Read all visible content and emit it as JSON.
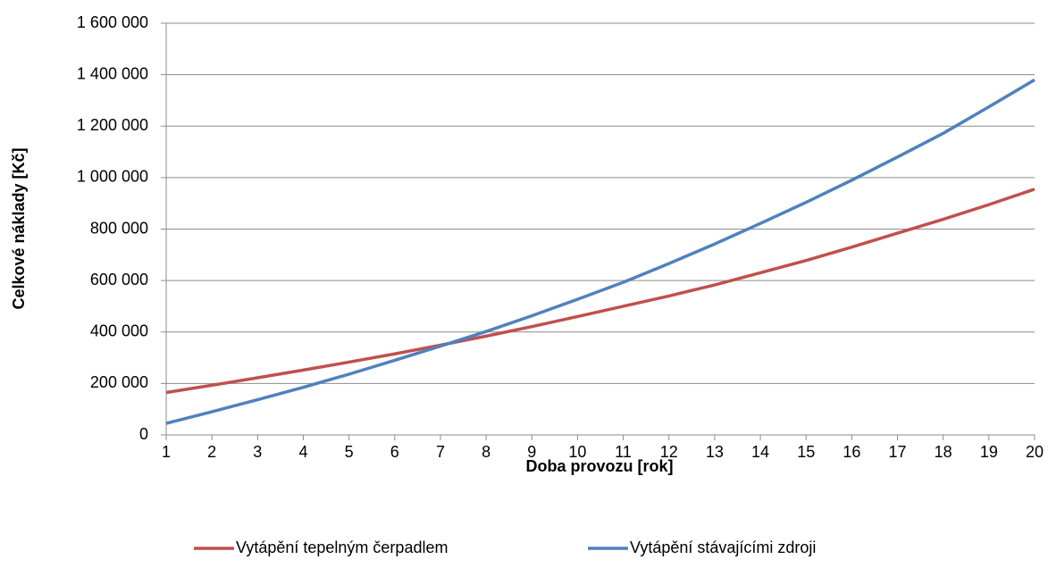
{
  "chart_data": {
    "type": "line",
    "x_label": "Doba provozu [rok]",
    "y_label": "Celkové  náklady [Kč]",
    "x": [
      1,
      2,
      3,
      4,
      5,
      6,
      7,
      8,
      9,
      10,
      11,
      12,
      13,
      14,
      15,
      16,
      17,
      18,
      19,
      20
    ],
    "xlim": [
      1,
      20
    ],
    "xticks": [
      1,
      2,
      3,
      4,
      5,
      6,
      7,
      8,
      9,
      10,
      11,
      12,
      13,
      14,
      15,
      16,
      17,
      18,
      19,
      20
    ],
    "ylim": [
      0,
      1600000
    ],
    "yticks": [
      0,
      {
        "value": 200000,
        "label": "200 000"
      },
      {
        "value": 400000,
        "label": "400 000"
      },
      {
        "value": 600000,
        "label": "600 000"
      },
      {
        "value": 800000,
        "label": "800 000"
      },
      {
        "value": 1000000,
        "label": "1 000 000"
      },
      {
        "value": 1200000,
        "label": "1 200 000"
      },
      {
        "value": 1400000,
        "label": "1 400 000"
      },
      {
        "value": 1600000,
        "label": "1 600 000"
      }
    ],
    "grid": true,
    "legend": "bottom",
    "series": [
      {
        "name": "Vytápění tepelným čerpadlem",
        "color": "#c0504d",
        "values": [
          165000,
          193000,
          222000,
          252000,
          283000,
          315000,
          349000,
          384000,
          421000,
          460000,
          500000,
          540000,
          583000,
          630000,
          678000,
          730000,
          784000,
          838000,
          895000,
          955000
        ]
      },
      {
        "name": "Vytápění stávajícími zdroji",
        "color": "#4f81bd",
        "values": [
          45000,
          90000,
          137000,
          185000,
          236000,
          290000,
          345000,
          402000,
          463000,
          527000,
          593000,
          666000,
          742000,
          822000,
          904000,
          990000,
          1080000,
          1172000,
          1275000,
          1380000
        ]
      }
    ]
  }
}
